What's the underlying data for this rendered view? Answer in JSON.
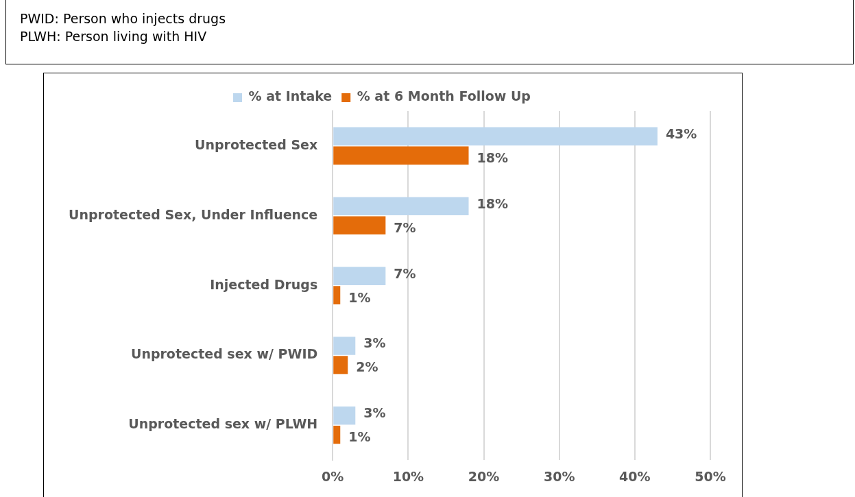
{
  "chart_data": {
    "type": "bar",
    "orientation": "horizontal",
    "annotations": [
      "PWID: Person who injects drugs",
      "PLWH: Person living with HIV"
    ],
    "categories": [
      "Unprotected Sex",
      "Unprotected Sex, Under Influence",
      "Injected Drugs",
      "Unprotected sex w/ PWID",
      "Unprotected sex w/ PLWH"
    ],
    "series": [
      {
        "name": "% at Intake",
        "color": "#bdd7ee",
        "values": [
          43,
          18,
          7,
          3,
          3
        ],
        "value_labels": [
          "43%",
          "18%",
          "7%",
          "3%",
          "3%"
        ]
      },
      {
        "name": "% at 6 Month Follow Up",
        "color": "#e46c0a",
        "values": [
          18,
          7,
          1,
          2,
          1
        ],
        "value_labels": [
          "18%",
          "7%",
          "1%",
          "2%",
          "1%"
        ]
      }
    ],
    "xlim": [
      0,
      50
    ],
    "xticks": [
      {
        "value": 0,
        "label": "0%"
      },
      {
        "value": 10,
        "label": "10%"
      },
      {
        "value": 20,
        "label": "20%"
      },
      {
        "value": 30,
        "label": "30%"
      },
      {
        "value": 40,
        "label": "40%"
      },
      {
        "value": 50,
        "label": "50%"
      }
    ],
    "grid": "x",
    "legend": "top"
  }
}
